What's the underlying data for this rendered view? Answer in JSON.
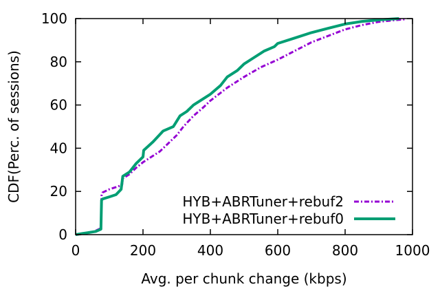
{
  "chart_data": {
    "type": "line",
    "title": "",
    "xlabel": "Avg. per chunk change (kbps)",
    "ylabel": "CDF(Perc. of sessions)",
    "xlim": [
      0,
      1000
    ],
    "ylim": [
      0,
      100
    ],
    "x_ticks": [
      0,
      200,
      400,
      600,
      800,
      1000
    ],
    "y_ticks": [
      0,
      20,
      40,
      60,
      80,
      100
    ],
    "x_tick_labels": [
      "0",
      "200",
      "400",
      "600",
      "800",
      "1000"
    ],
    "y_tick_labels": [
      "0",
      "20",
      "40",
      "60",
      "80",
      "100"
    ],
    "grid": false,
    "legend_position": "bottom-right",
    "series": [
      {
        "name": "HYB+ABRTuner+rebuf2",
        "color": "#9400d3",
        "style": "dash-dot",
        "points": [
          [
            0,
            0
          ],
          [
            30,
            0.5
          ],
          [
            55,
            1.5
          ],
          [
            75,
            3
          ],
          [
            77,
            18
          ],
          [
            80,
            19.5
          ],
          [
            100,
            21
          ],
          [
            120,
            22
          ],
          [
            138,
            23
          ],
          [
            140,
            26
          ],
          [
            160,
            28
          ],
          [
            180,
            31
          ],
          [
            200,
            33.5
          ],
          [
            220,
            35.5
          ],
          [
            250,
            38.5
          ],
          [
            280,
            43
          ],
          [
            300,
            46
          ],
          [
            320,
            50
          ],
          [
            350,
            55
          ],
          [
            380,
            59
          ],
          [
            400,
            62
          ],
          [
            450,
            68
          ],
          [
            500,
            73
          ],
          [
            550,
            77.5
          ],
          [
            600,
            81
          ],
          [
            650,
            85
          ],
          [
            700,
            89
          ],
          [
            750,
            92
          ],
          [
            800,
            95
          ],
          [
            850,
            97
          ],
          [
            900,
            98.5
          ],
          [
            950,
            99.3
          ],
          [
            980,
            99.7
          ]
        ]
      },
      {
        "name": "HYB+ABRTuner+rebuf0",
        "color": "#009e73",
        "style": "solid",
        "points": [
          [
            0,
            0
          ],
          [
            20,
            0.5
          ],
          [
            40,
            1
          ],
          [
            60,
            1.5
          ],
          [
            75,
            2.5
          ],
          [
            77,
            16
          ],
          [
            80,
            16.5
          ],
          [
            100,
            17.5
          ],
          [
            120,
            18.5
          ],
          [
            135,
            21
          ],
          [
            140,
            27
          ],
          [
            160,
            29
          ],
          [
            180,
            33
          ],
          [
            200,
            36
          ],
          [
            202,
            39
          ],
          [
            230,
            43
          ],
          [
            260,
            48
          ],
          [
            290,
            50
          ],
          [
            310,
            55
          ],
          [
            330,
            57
          ],
          [
            350,
            60
          ],
          [
            380,
            63
          ],
          [
            400,
            65
          ],
          [
            430,
            69
          ],
          [
            450,
            73
          ],
          [
            480,
            76
          ],
          [
            500,
            79
          ],
          [
            530,
            82
          ],
          [
            560,
            85
          ],
          [
            590,
            87
          ],
          [
            600,
            88.5
          ],
          [
            650,
            91
          ],
          [
            700,
            93.5
          ],
          [
            750,
            95.5
          ],
          [
            800,
            97.5
          ],
          [
            850,
            98.7
          ],
          [
            900,
            99.4
          ],
          [
            960,
            100
          ]
        ]
      }
    ]
  }
}
